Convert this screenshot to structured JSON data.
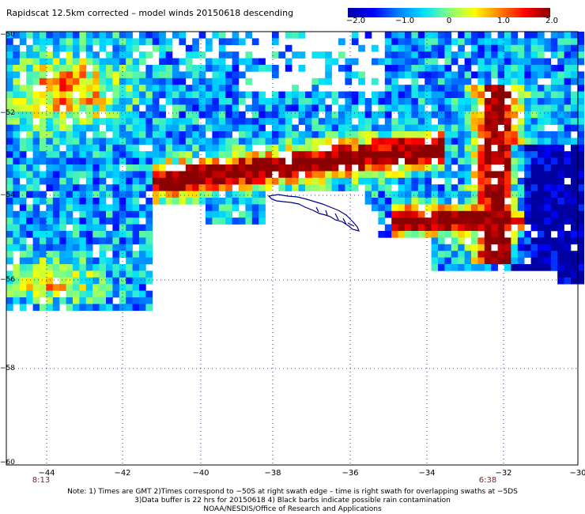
{
  "title": "Rapidscat 12.5km corrected – model winds 20150618 descending",
  "colorbar": {
    "ticks": [
      "−2.0",
      "−1.0",
      "0",
      "1.0",
      "2.0"
    ],
    "range": [
      -2.0,
      2.0
    ],
    "colors": [
      "#0000a0",
      "#0000ff",
      "#0080ff",
      "#00e0ff",
      "#80ff80",
      "#ffff00",
      "#ff8000",
      "#ff0000",
      "#8b0000"
    ]
  },
  "map": {
    "lat_labels": [
      "−50",
      "−52",
      "−54",
      "−56",
      "−58",
      "−60"
    ],
    "lon_labels": [
      "−44",
      "−42",
      "−40",
      "−38",
      "−36",
      "−34",
      "−32",
      "−30"
    ],
    "lat_range": [
      -60,
      -50
    ],
    "lon_range": [
      -44.8,
      -30
    ],
    "land": "South Georgia Island",
    "land_color": "#000080"
  },
  "times": {
    "left": "8:13",
    "right": "6:38"
  },
  "notes": [
    "Note: 1) Times are GMT 2)Times correspond to −50S at right swath edge – time is right swath for overlapping swaths at −5DS",
    "3)Data buffer is 22 hrs for 20150618 4) Black barbs indicate possible rain contamination",
    "NOAA/NESDIS/Office of Research and Applications"
  ]
}
